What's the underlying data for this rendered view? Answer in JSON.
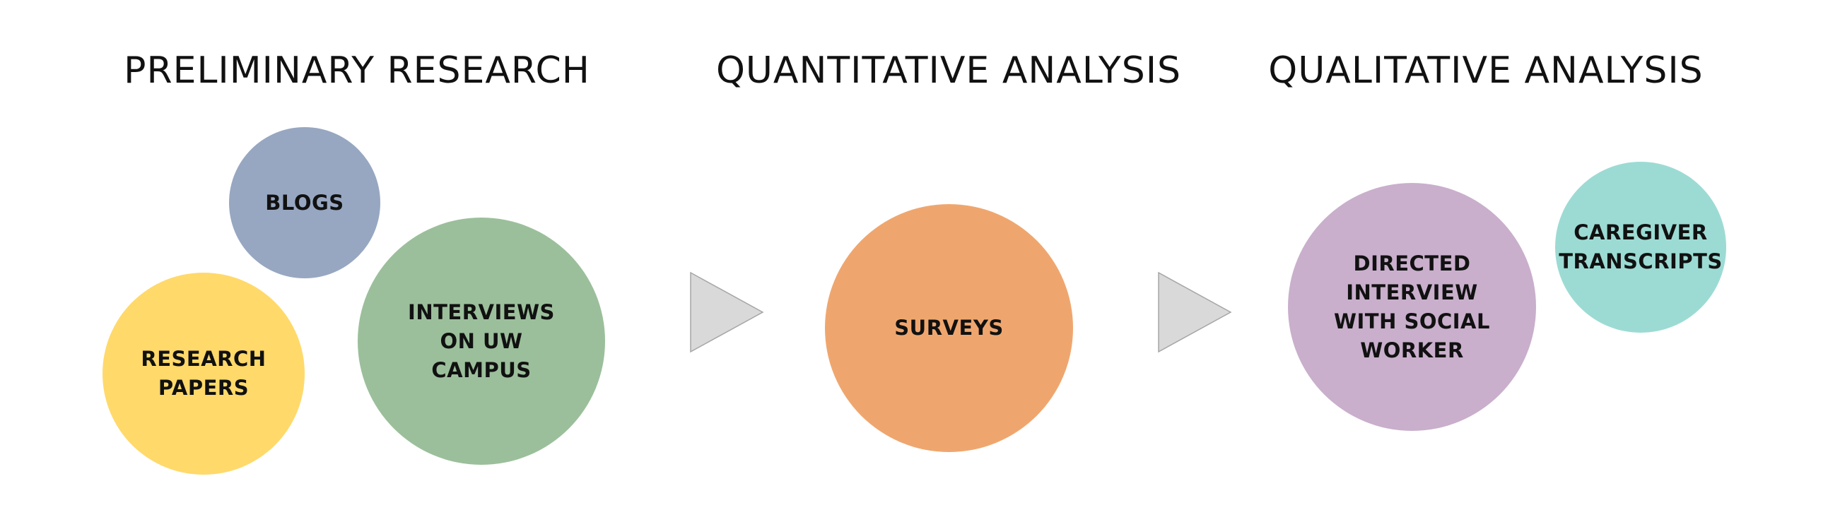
{
  "headings": {
    "preliminary": "PRELIMINARY RESEARCH",
    "quantitative": "QUANTITATIVE ANALYSIS",
    "qualitative": "QUALITATIVE ANALYSIS"
  },
  "nodes": {
    "blogs": {
      "label": "BLOGS",
      "color": "#97A7C1"
    },
    "research_papers": {
      "label": "RESEARCH\nPAPERS",
      "color": "#FFD96A"
    },
    "interviews_uw": {
      "label": "INTERVIEWS\nON UW\nCAMPUS",
      "color": "#9BBF9B"
    },
    "surveys": {
      "label": "SURVEYS",
      "color": "#EFA66E"
    },
    "directed_interview": {
      "label": "DIRECTED\nINTERVIEW\nWITH SOCIAL\nWORKER",
      "color": "#C9AFCC"
    },
    "caregiver_transcripts": {
      "label": "CAREGIVER\nTRANSCRIPTS",
      "color": "#9CDBD3"
    }
  },
  "colors": {
    "arrow_fill": "#D9D9D9",
    "arrow_stroke": "#A6A6A6",
    "text": "#111111"
  }
}
